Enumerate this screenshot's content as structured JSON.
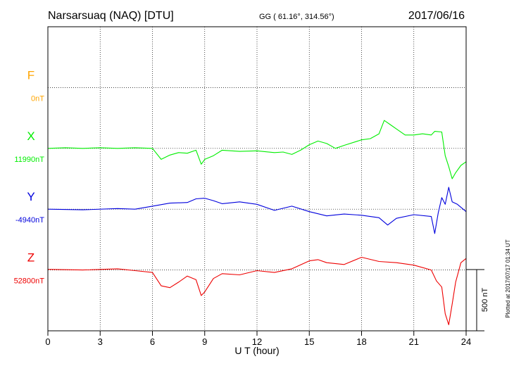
{
  "header": {
    "station": "Narsarsuaq (NAQ)  [DTU]",
    "coords": "GG ( 61.16°, 314.56°)",
    "date": "2017/06/16"
  },
  "side_note": "Plotted at 2017/07/17 01:34 UT",
  "chart_data": {
    "type": "line",
    "xlabel": "U T (hour)",
    "xlim": [
      0,
      24
    ],
    "xticks": [
      0,
      3,
      6,
      9,
      12,
      15,
      18,
      21,
      24
    ],
    "xtick_labels": [
      "0",
      "3",
      "6",
      "9",
      "12",
      "15",
      "18",
      "21",
      "24"
    ],
    "grid": true,
    "units_per_division_nT": 500,
    "scale_label": "500 nT",
    "series": [
      {
        "name": "F",
        "baseline_label": "0nT",
        "color": "#ffa500",
        "points": []
      },
      {
        "name": "X",
        "baseline_label": "11990nT",
        "color": "#00ee00",
        "points": [
          [
            0,
            0
          ],
          [
            1,
            5
          ],
          [
            2,
            0
          ],
          [
            3,
            5
          ],
          [
            4,
            0
          ],
          [
            5,
            5
          ],
          [
            6,
            0
          ],
          [
            6.5,
            -90
          ],
          [
            7,
            -55
          ],
          [
            7.5,
            -35
          ],
          [
            8,
            -40
          ],
          [
            8.5,
            -15
          ],
          [
            8.8,
            -130
          ],
          [
            9,
            -90
          ],
          [
            9.5,
            -60
          ],
          [
            10,
            -15
          ],
          [
            11,
            -25
          ],
          [
            12,
            -20
          ],
          [
            13,
            -35
          ],
          [
            13.5,
            -30
          ],
          [
            14,
            -50
          ],
          [
            14.5,
            -15
          ],
          [
            15,
            30
          ],
          [
            15.5,
            60
          ],
          [
            16,
            40
          ],
          [
            16.5,
            0
          ],
          [
            17,
            25
          ],
          [
            18,
            70
          ],
          [
            18.5,
            80
          ],
          [
            19,
            120
          ],
          [
            19.3,
            230
          ],
          [
            19.7,
            190
          ],
          [
            20,
            160
          ],
          [
            20.5,
            110
          ],
          [
            21,
            110
          ],
          [
            21.5,
            120
          ],
          [
            22,
            110
          ],
          [
            22.2,
            140
          ],
          [
            22.6,
            135
          ],
          [
            22.8,
            -60
          ],
          [
            23,
            -150
          ],
          [
            23.2,
            -250
          ],
          [
            23.4,
            -200
          ],
          [
            23.7,
            -140
          ],
          [
            24,
            -110
          ]
        ]
      },
      {
        "name": "Y",
        "baseline_label": "-4940nT",
        "color": "#0000dd",
        "points": [
          [
            0,
            0
          ],
          [
            2,
            -5
          ],
          [
            4,
            5
          ],
          [
            5,
            0
          ],
          [
            6,
            25
          ],
          [
            7,
            50
          ],
          [
            8,
            55
          ],
          [
            8.5,
            85
          ],
          [
            9,
            90
          ],
          [
            9.5,
            70
          ],
          [
            10,
            45
          ],
          [
            11,
            60
          ],
          [
            12,
            40
          ],
          [
            13,
            -10
          ],
          [
            14,
            25
          ],
          [
            15,
            -20
          ],
          [
            16,
            -55
          ],
          [
            17,
            -40
          ],
          [
            18,
            -50
          ],
          [
            19,
            -70
          ],
          [
            19.5,
            -130
          ],
          [
            20,
            -75
          ],
          [
            21,
            -45
          ],
          [
            22,
            -60
          ],
          [
            22.2,
            -200
          ],
          [
            22.4,
            -30
          ],
          [
            22.6,
            95
          ],
          [
            22.8,
            40
          ],
          [
            23,
            180
          ],
          [
            23.2,
            60
          ],
          [
            23.5,
            40
          ],
          [
            24,
            -20
          ]
        ]
      },
      {
        "name": "Z",
        "baseline_label": "52800nT",
        "color": "#ee0000",
        "points": [
          [
            0,
            5
          ],
          [
            2,
            0
          ],
          [
            4,
            10
          ],
          [
            5,
            -5
          ],
          [
            6,
            -20
          ],
          [
            6.5,
            -130
          ],
          [
            7,
            -145
          ],
          [
            7.5,
            -100
          ],
          [
            8,
            -50
          ],
          [
            8.5,
            -80
          ],
          [
            8.8,
            -210
          ],
          [
            9,
            -180
          ],
          [
            9.5,
            -70
          ],
          [
            10,
            -30
          ],
          [
            11,
            -40
          ],
          [
            12,
            -5
          ],
          [
            13,
            -20
          ],
          [
            14,
            10
          ],
          [
            15,
            75
          ],
          [
            15.5,
            85
          ],
          [
            16,
            60
          ],
          [
            17,
            45
          ],
          [
            18,
            105
          ],
          [
            19,
            70
          ],
          [
            20,
            60
          ],
          [
            21,
            40
          ],
          [
            22,
            0
          ],
          [
            22.3,
            -90
          ],
          [
            22.6,
            -140
          ],
          [
            22.8,
            -360
          ],
          [
            23,
            -450
          ],
          [
            23.2,
            -280
          ],
          [
            23.4,
            -100
          ],
          [
            23.7,
            60
          ],
          [
            24,
            95
          ]
        ]
      }
    ]
  }
}
